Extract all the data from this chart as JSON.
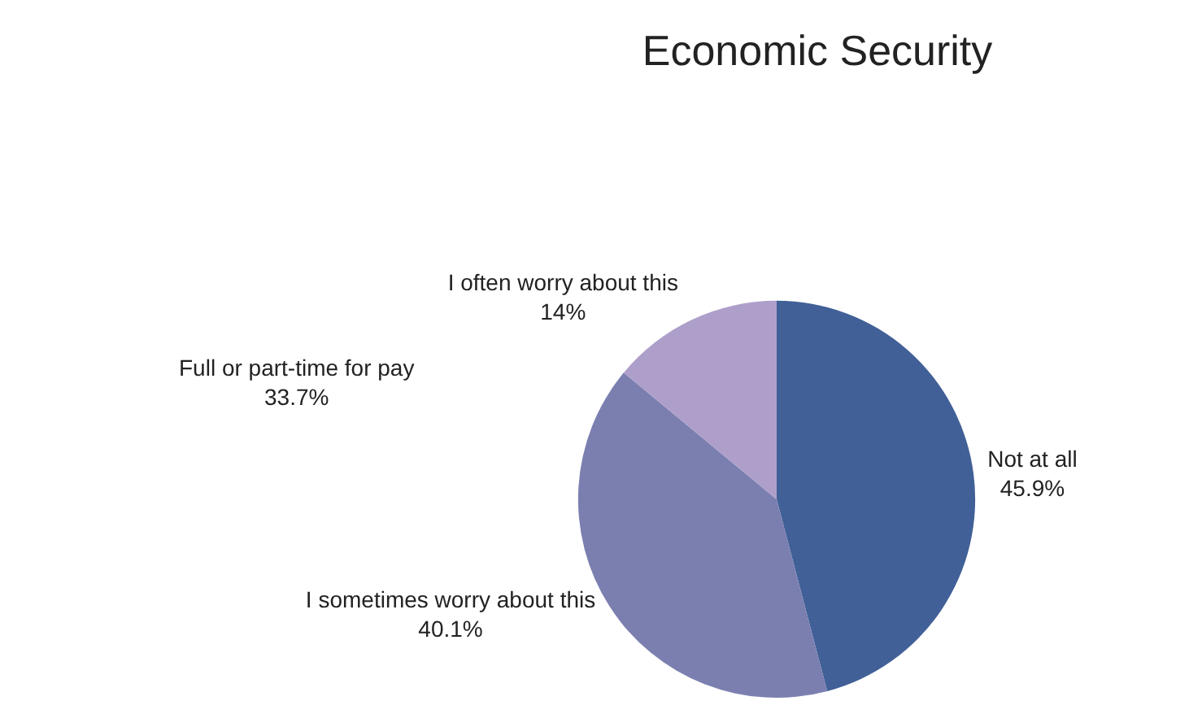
{
  "chart_data": {
    "type": "pie",
    "title": "Economic Security",
    "categories": [
      "Not at all",
      "I sometimes worry about this",
      "I often worry about this"
    ],
    "values": [
      45.9,
      40.1,
      14
    ],
    "colors": [
      "#416097",
      "#7b7fb0",
      "#ae9fca"
    ],
    "value_labels": [
      "45.9%",
      "40.1%",
      "14%"
    ],
    "legend": false,
    "annotations": [
      "Full or part-time for pay\n33.7%"
    ]
  }
}
